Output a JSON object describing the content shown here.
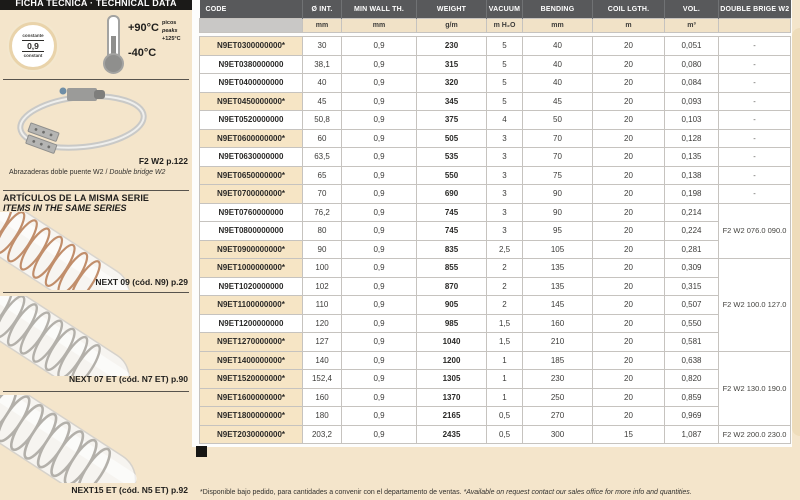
{
  "page": {
    "title": "FICHA TÉCNICA · TECHNICAL DATA",
    "footnote_es": "*Disponible bajo pedido, para cantidades a convenir con el departamento de ventas.",
    "footnote_en": "*Available on request contact our sales office for more info and quantities."
  },
  "specs": {
    "badge": {
      "top": "constante",
      "value": "0,9",
      "bottom": "constant"
    },
    "temperature": {
      "max": "+90°C",
      "min": "-40°C",
      "peaks_es": "picos",
      "peaks_en": "peaks",
      "peaks_value": "+125°C"
    }
  },
  "clamp": {
    "ref": "F2 W2 p.122",
    "caption_es": "Abrazaderas doble puente W2 /",
    "caption_en": "Double bridge W2"
  },
  "series": {
    "heading_es": "ARTÍCULOS DE LA MISMA SERIE",
    "heading_en": "ITEMS IN THE SAME SERIES",
    "items": [
      {
        "label": "NEXT 09 (cód. N9) p.29"
      },
      {
        "label": "NEXT 07 ET (cód. N7 ET) p.90"
      },
      {
        "label": "NEXT15 ET (cód. N5 ET) p.92"
      }
    ]
  },
  "table": {
    "headers": [
      "CODE",
      "Ø INT.",
      "MIN WALL TH.",
      "WEIGHT",
      "VACUUM",
      "BENDING",
      "COIL LGTH.",
      "VOL.",
      "DOUBLE BRIGE W2"
    ],
    "units": [
      "",
      "mm",
      "mm",
      "g/m",
      "m H₂O",
      "mm",
      "m",
      "m³",
      ""
    ],
    "rows": [
      {
        "code": "N9ET0300000000*",
        "starred": true,
        "values": [
          "30",
          "0,9",
          "230",
          "5",
          "40",
          "20",
          "0,051"
        ]
      },
      {
        "code": "N9ET0380000000",
        "starred": false,
        "values": [
          "38,1",
          "0,9",
          "315",
          "5",
          "40",
          "20",
          "0,080"
        ]
      },
      {
        "code": "N9ET0400000000",
        "starred": false,
        "values": [
          "40",
          "0,9",
          "320",
          "5",
          "40",
          "20",
          "0,084"
        ]
      },
      {
        "code": "N9ET0450000000*",
        "starred": true,
        "values": [
          "45",
          "0,9",
          "345",
          "5",
          "45",
          "20",
          "0,093"
        ]
      },
      {
        "code": "N9ET0520000000",
        "starred": false,
        "values": [
          "50,8",
          "0,9",
          "375",
          "4",
          "50",
          "20",
          "0,103"
        ]
      },
      {
        "code": "N9ET0600000000*",
        "starred": true,
        "values": [
          "60",
          "0,9",
          "505",
          "3",
          "70",
          "20",
          "0,128"
        ]
      },
      {
        "code": "N9ET0630000000",
        "starred": false,
        "values": [
          "63,5",
          "0,9",
          "535",
          "3",
          "70",
          "20",
          "0,135"
        ]
      },
      {
        "code": "N9ET0650000000*",
        "starred": true,
        "values": [
          "65",
          "0,9",
          "550",
          "3",
          "75",
          "20",
          "0,138"
        ]
      },
      {
        "code": "N9ET0700000000*",
        "starred": true,
        "values": [
          "70",
          "0,9",
          "690",
          "3",
          "90",
          "20",
          "0,198"
        ]
      },
      {
        "code": "N9ET0760000000",
        "starred": false,
        "values": [
          "76,2",
          "0,9",
          "745",
          "3",
          "90",
          "20",
          "0,214"
        ]
      },
      {
        "code": "N9ET0800000000",
        "starred": false,
        "values": [
          "80",
          "0,9",
          "745",
          "3",
          "95",
          "20",
          "0,224"
        ]
      },
      {
        "code": "N9ET0900000000*",
        "starred": true,
        "values": [
          "90",
          "0,9",
          "835",
          "2,5",
          "105",
          "20",
          "0,281"
        ]
      },
      {
        "code": "N9ET1000000000*",
        "starred": true,
        "values": [
          "100",
          "0,9",
          "855",
          "2",
          "135",
          "20",
          "0,309"
        ]
      },
      {
        "code": "N9ET1020000000",
        "starred": false,
        "values": [
          "102",
          "0,9",
          "870",
          "2",
          "135",
          "20",
          "0,315"
        ]
      },
      {
        "code": "N9ET1100000000*",
        "starred": true,
        "values": [
          "110",
          "0,9",
          "905",
          "2",
          "145",
          "20",
          "0,507"
        ]
      },
      {
        "code": "N9ET1200000000",
        "starred": false,
        "values": [
          "120",
          "0,9",
          "985",
          "1,5",
          "160",
          "20",
          "0,550"
        ]
      },
      {
        "code": "N9ET1270000000*",
        "starred": true,
        "values": [
          "127",
          "0,9",
          "1040",
          "1,5",
          "210",
          "20",
          "0,581"
        ]
      },
      {
        "code": "N9ET1400000000*",
        "starred": true,
        "values": [
          "140",
          "0,9",
          "1200",
          "1",
          "185",
          "20",
          "0,638"
        ]
      },
      {
        "code": "N9ET1520000000*",
        "starred": true,
        "values": [
          "152,4",
          "0,9",
          "1305",
          "1",
          "230",
          "20",
          "0,820"
        ]
      },
      {
        "code": "N9ET1600000000*",
        "starred": true,
        "values": [
          "160",
          "0,9",
          "1370",
          "1",
          "250",
          "20",
          "0,859"
        ]
      },
      {
        "code": "N9ET1800000000*",
        "starred": true,
        "values": [
          "180",
          "0,9",
          "2165",
          "0,5",
          "270",
          "20",
          "0,969"
        ]
      },
      {
        "code": "N9ET2030000000*",
        "starred": true,
        "values": [
          "203,2",
          "0,9",
          "2435",
          "0,5",
          "300",
          "15",
          "1,087"
        ]
      }
    ],
    "bridge_cells": [
      {
        "row": 0,
        "span": 1,
        "text": "-"
      },
      {
        "row": 1,
        "span": 1,
        "text": "-"
      },
      {
        "row": 2,
        "span": 1,
        "text": "-"
      },
      {
        "row": 3,
        "span": 1,
        "text": "-"
      },
      {
        "row": 4,
        "span": 1,
        "text": "-"
      },
      {
        "row": 5,
        "span": 1,
        "text": "-"
      },
      {
        "row": 6,
        "span": 1,
        "text": "-"
      },
      {
        "row": 7,
        "span": 1,
        "text": "-"
      },
      {
        "row": 8,
        "span": 1,
        "text": "-"
      },
      {
        "row": 9,
        "span": 3,
        "text": "F2 W2 076.0 090.0"
      },
      {
        "row": 12,
        "span": 5,
        "text": "F2 W2 100.0 127.0"
      },
      {
        "row": 17,
        "span": 4,
        "text": "F2 W2 130.0 190.0"
      },
      {
        "row": 21,
        "span": 1,
        "text": "F2 W2 200.0 230.0"
      }
    ]
  },
  "colors": {
    "page_bg": "#f4e5cb",
    "title_bar": "#1b1a18",
    "table_header": "#58595b",
    "unit_row": "#f1e2c7",
    "starred_cell": "#f6e5c5",
    "border": "#c6c3bf"
  }
}
